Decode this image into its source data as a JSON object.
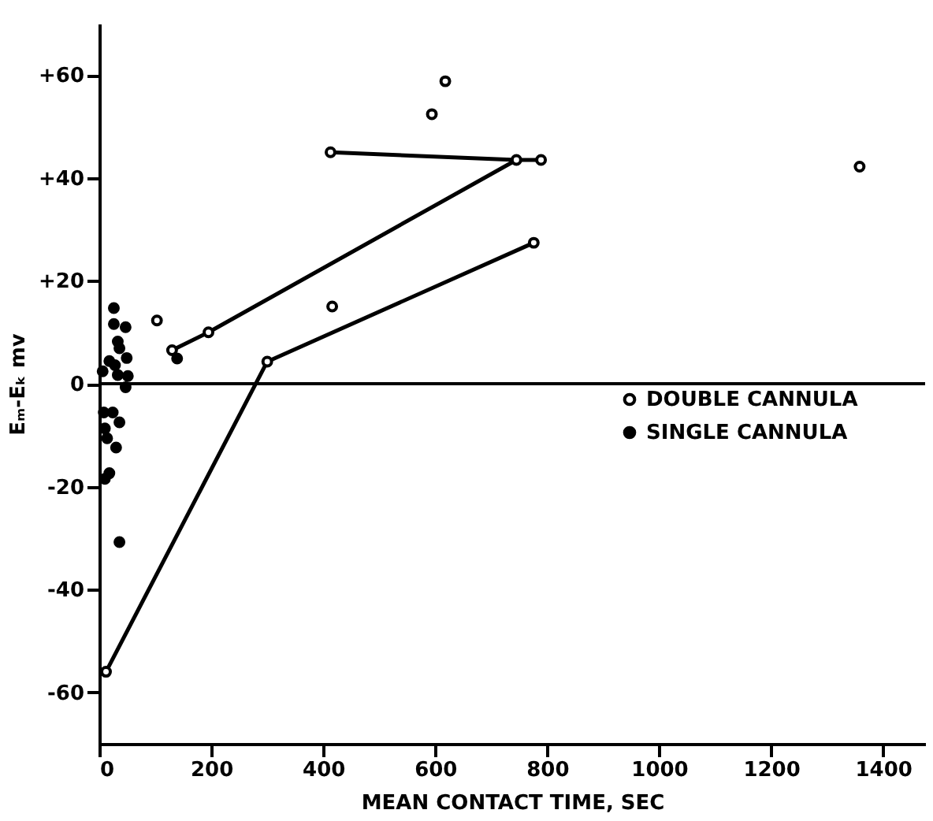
{
  "chart_data": {
    "type": "scatter",
    "xlabel": "MEAN CONTACT TIME, SEC",
    "ylabel": "Eₘ-Eₖ mv",
    "xlim": [
      0,
      1475
    ],
    "ylim": [
      -70,
      70
    ],
    "xticks": [
      0,
      200,
      400,
      600,
      800,
      1000,
      1200,
      1400
    ],
    "yticks": [
      {
        "value": -60,
        "label": "-60"
      },
      {
        "value": -40,
        "label": "-40"
      },
      {
        "value": -20,
        "label": "-20"
      },
      0,
      {
        "value": 20,
        "label": "+20"
      },
      {
        "value": 40,
        "label": "+40"
      },
      {
        "value": 60,
        "label": "+60"
      }
    ],
    "legend": "right",
    "ref_lines": [
      {
        "axis": "y",
        "value": 0,
        "color": "#000000"
      }
    ],
    "series": [
      {
        "type": "line",
        "color": "#000000",
        "marker": "none",
        "line_style": "solid",
        "x": [
          12,
          300,
          776
        ],
        "values": [
          -56,
          4.3,
          27.4
        ]
      },
      {
        "type": "line",
        "color": "#000000",
        "marker": "none",
        "line_style": "solid",
        "x": [
          130,
          195,
          745,
          789
        ],
        "values": [
          6.5,
          10,
          43.5,
          43.5
        ]
      },
      {
        "type": "line",
        "color": "#000000",
        "marker": "none",
        "line_style": "solid",
        "x": [
          413,
          745
        ],
        "values": [
          45,
          43.5
        ]
      },
      {
        "name": "DOUBLE CANNULA",
        "color": "#ffffff",
        "marker": "circle",
        "x": [
          12,
          300,
          776,
          103,
          130,
          195,
          745,
          789,
          413,
          416,
          594,
          618,
          1358
        ],
        "values": [
          -56,
          4.3,
          27.4,
          12.3,
          6.5,
          10,
          43.5,
          43.5,
          45,
          15,
          52.4,
          58.8,
          42.2
        ]
      },
      {
        "name": "SINGLE CANNULA",
        "color": "#000000",
        "marker": "circle",
        "x": [
          6,
          26,
          26,
          47,
          33,
          36,
          49,
          18,
          28,
          33,
          51,
          47,
          8,
          24,
          36,
          10,
          14,
          30,
          18,
          10,
          36,
          139
        ],
        "values": [
          2.4,
          14.7,
          11.6,
          11,
          8.2,
          6.9,
          5,
          4.4,
          3.6,
          1.7,
          1.5,
          -0.7,
          -5.6,
          -5.6,
          -7.5,
          -8.7,
          -10.6,
          -12.4,
          -17.4,
          -18.5,
          -30.8,
          4.9
        ]
      }
    ]
  }
}
